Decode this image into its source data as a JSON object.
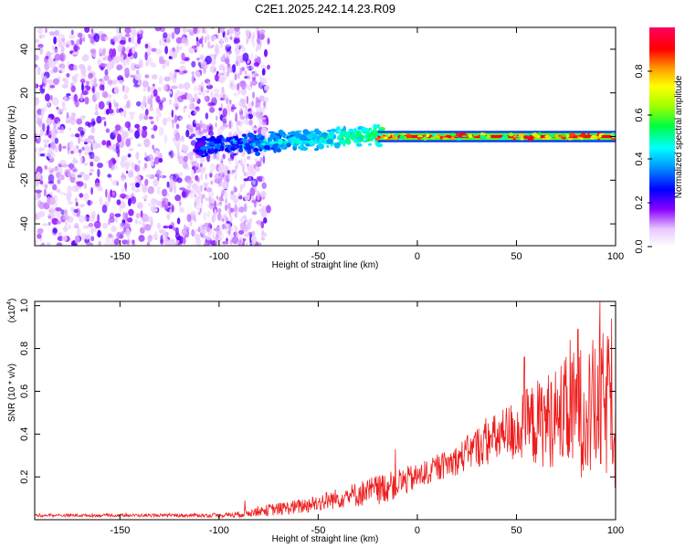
{
  "title": "C2E1.2025.242.14.23.R09",
  "colors": {
    "snr_line": "#ee1c1c",
    "axis": "#000000",
    "background": "#ffffff"
  },
  "chart_data": [
    {
      "type": "heatmap",
      "title": "C2E1.2025.242.14.23.R09",
      "xlabel": "Height of straight line (km)",
      "ylabel": "Frequency (Hz)",
      "xlim": [
        -193,
        100
      ],
      "ylim": [
        -50,
        50
      ],
      "xticks": [
        -150,
        -100,
        -50,
        0,
        50,
        100
      ],
      "yticks": [
        -40,
        -20,
        0,
        20,
        40
      ],
      "xtick_labels": [
        "-150",
        "-100",
        "-50",
        "0",
        "50",
        "100"
      ],
      "ytick_labels": [
        "-40",
        "-20",
        "0",
        "20",
        "40"
      ],
      "colorbar": {
        "label": "Normalized spectral amplitude",
        "range": [
          0,
          1
        ],
        "ticks": [
          0.0,
          0.2,
          0.4,
          0.6,
          0.8
        ],
        "tick_labels": [
          "0.0",
          "0.2",
          "0.4",
          "0.6",
          "0.8"
        ],
        "colormap": "rainbow (white-violet-blue-cyan-green-yellow-red-magenta)"
      },
      "features": [
        {
          "region": "noise",
          "x_range": [
            -193,
            -78
          ],
          "freq_range": [
            -50,
            50
          ],
          "amplitude": "0.05-0.2"
        },
        {
          "region": "ramp-up",
          "x_range": [
            -110,
            -20
          ],
          "freq_center": [
            -5,
            2
          ],
          "freq_halfwidth": 4,
          "amplitude": "0.2-0.5"
        },
        {
          "region": "carrier",
          "x_range": [
            -20,
            100
          ],
          "freq_center": 0,
          "freq_halfwidth": 2,
          "amplitude": "0.8-1.0"
        }
      ]
    },
    {
      "type": "line",
      "xlabel": "Height of straight line (km)",
      "ylabel": "SNR (10 * v/v)",
      "y_multiplier": "(x10",
      "y_multiplier_exp": "4",
      "y_multiplier_close": ")",
      "xlim": [
        -193,
        100
      ],
      "ylim": [
        0,
        1.02
      ],
      "xticks": [
        -150,
        -100,
        -50,
        0,
        50,
        100
      ],
      "yticks": [
        0.2,
        0.4,
        0.6,
        0.8,
        1.0
      ],
      "xtick_labels": [
        "-150",
        "-100",
        "-50",
        "0",
        "50",
        "100"
      ],
      "ytick_labels": [
        "0.2",
        "0.4",
        "0.6",
        "0.8",
        "1.0"
      ],
      "series": [
        {
          "name": "SNR",
          "x": [
            -193,
            -175,
            -150,
            -125,
            -100,
            -90,
            -80,
            -70,
            -60,
            -50,
            -40,
            -30,
            -20,
            -10,
            0,
            10,
            20,
            30,
            40,
            50,
            60,
            70,
            80,
            90,
            100
          ],
          "mean": [
            0.02,
            0.02,
            0.02,
            0.02,
            0.02,
            0.025,
            0.04,
            0.05,
            0.06,
            0.08,
            0.1,
            0.12,
            0.14,
            0.17,
            0.2,
            0.24,
            0.28,
            0.34,
            0.38,
            0.42,
            0.45,
            0.48,
            0.5,
            0.52,
            0.55
          ],
          "amp": [
            0.006,
            0.006,
            0.006,
            0.006,
            0.008,
            0.012,
            0.02,
            0.025,
            0.03,
            0.035,
            0.04,
            0.05,
            0.06,
            0.06,
            0.05,
            0.05,
            0.06,
            0.08,
            0.1,
            0.13,
            0.17,
            0.2,
            0.25,
            0.28,
            0.3
          ],
          "peaks": [
            {
              "x": -87,
              "y": 0.09
            },
            {
              "x": -11,
              "y": 0.33
            },
            {
              "x": 54,
              "y": 0.76
            },
            {
              "x": 77,
              "y": 0.84
            },
            {
              "x": 81,
              "y": 0.89
            },
            {
              "x": 92,
              "y": 1.02
            },
            {
              "x": 98,
              "y": 0.94
            }
          ]
        }
      ]
    }
  ]
}
